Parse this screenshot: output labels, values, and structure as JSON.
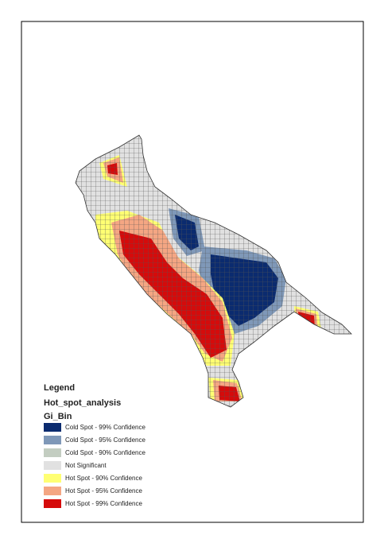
{
  "legend": {
    "title": "Legend",
    "layer": "Hot_spot_analysis",
    "field": "Gi_Bin",
    "items": [
      {
        "label": "Cold Spot - 99% Confidence",
        "color": "#0b2b6f"
      },
      {
        "label": "Cold Spot - 95% Confidence",
        "color": "#7f98b8"
      },
      {
        "label": "Cold Spot - 90% Confidence",
        "color": "#c3cdc1"
      },
      {
        "label": "Not Significant",
        "color": "#e1e1e1"
      },
      {
        "label": "Hot Spot - 90% Confidence",
        "color": "#ffff73"
      },
      {
        "label": "Hot Spot - 95% Confidence",
        "color": "#f4a683"
      },
      {
        "label": "Hot Spot - 99% Confidence",
        "color": "#d50b0b"
      }
    ]
  }
}
